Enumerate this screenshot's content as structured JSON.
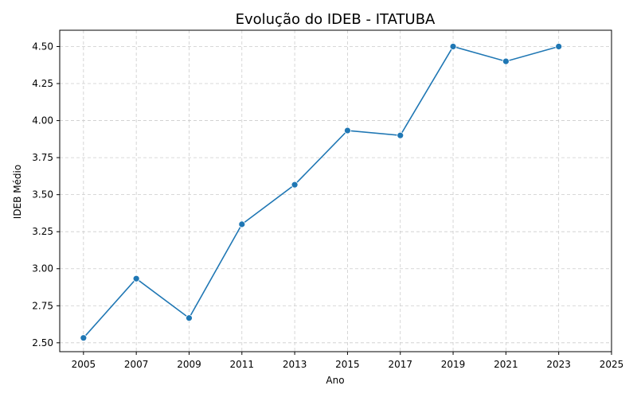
{
  "colors": {
    "line": "#1f77b4",
    "grid": "#cccccc",
    "axis": "#000000"
  },
  "chart_data": {
    "type": "line",
    "title": "Evolução do IDEB - ITATUBA",
    "xlabel": "Ano",
    "ylabel": "IDEB Médio",
    "x": [
      2005,
      2007,
      2009,
      2011,
      2013,
      2015,
      2017,
      2019,
      2021,
      2023
    ],
    "series": [
      {
        "values": [
          2.533,
          2.933,
          2.667,
          3.3,
          3.567,
          3.933,
          3.9,
          4.5,
          4.4,
          4.5
        ]
      }
    ],
    "xlim": [
      2004.1,
      2025.0
    ],
    "ylim": [
      2.44,
      4.61
    ],
    "x_ticks": [
      2005,
      2007,
      2009,
      2011,
      2013,
      2015,
      2017,
      2019,
      2021,
      2023,
      2025
    ],
    "y_ticks": [
      2.5,
      2.75,
      3.0,
      3.25,
      3.5,
      3.75,
      4.0,
      4.25,
      4.5
    ],
    "y_tick_labels": [
      "2.50",
      "2.75",
      "3.00",
      "3.25",
      "3.50",
      "3.75",
      "4.00",
      "4.25",
      "4.50"
    ],
    "grid": true,
    "grid_style": "dashed",
    "marker": "circle"
  }
}
